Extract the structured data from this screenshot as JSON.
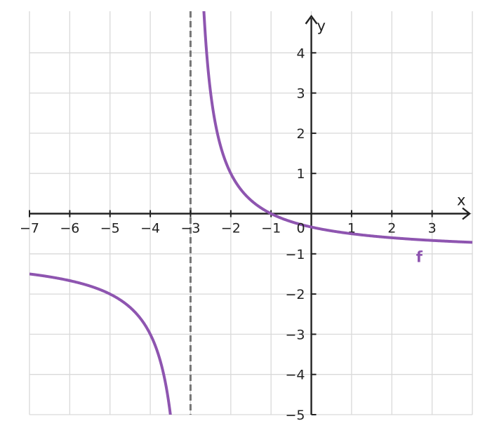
{
  "chart_data": {
    "type": "line",
    "title": "",
    "xlabel": "x",
    "ylabel": "y",
    "xlim": [
      -7,
      4
    ],
    "ylim": [
      -5,
      5
    ],
    "grid": true,
    "x_ticks": [
      -7,
      -6,
      -5,
      -4,
      -3,
      -2,
      -1,
      1,
      2,
      3
    ],
    "y_ticks": [
      -5,
      -4,
      -3,
      -2,
      -1,
      1,
      2,
      3,
      4
    ],
    "x_tick_labels": [
      "−7",
      "−6",
      "−5",
      "−4",
      "−3",
      "−2",
      "−1",
      "1",
      "2",
      "3"
    ],
    "y_tick_labels": [
      "−5",
      "−4",
      "−3",
      "−2",
      "−1",
      "1",
      "2",
      "3",
      "4"
    ],
    "origin_label": "0",
    "asymptotes": [
      {
        "type": "vertical",
        "x": -3
      }
    ],
    "series": [
      {
        "name": "f",
        "color": "#8e55b0",
        "function": "(-x-1)/(x+3)",
        "points_right": [
          [
            -2.6,
            4
          ],
          [
            -2.5,
            3
          ],
          [
            -2.3333,
            2
          ],
          [
            -2,
            1
          ],
          [
            -1.5,
            0.3333
          ],
          [
            -1,
            0
          ],
          [
            0,
            -0.3333
          ],
          [
            1,
            -0.5
          ],
          [
            2,
            -0.6
          ],
          [
            3,
            -0.6667
          ],
          [
            4,
            -0.7143
          ]
        ],
        "points_left": [
          [
            -7,
            -1.5
          ],
          [
            -6,
            -1.6667
          ],
          [
            -5,
            -2
          ],
          [
            -4,
            -3
          ],
          [
            -3.6667,
            -4
          ],
          [
            -3.5,
            -5
          ]
        ]
      }
    ]
  },
  "colors": {
    "grid": "#d9d9d9",
    "axis": "#222222",
    "asymptote": "#777777",
    "curve": "#8e55b0"
  }
}
